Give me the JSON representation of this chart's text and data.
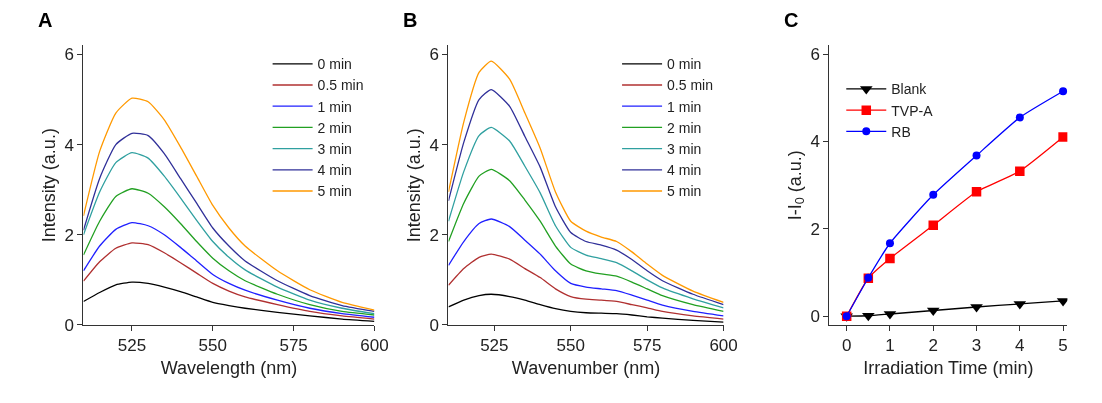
{
  "chart_data": [
    {
      "type": "line",
      "title": "A",
      "xlabel": "Wavelength (nm)",
      "ylabel": "Intensity (a.u.)",
      "xlim": [
        510,
        600
      ],
      "xticks": [
        525,
        550,
        575,
        600
      ],
      "ylim": [
        0,
        6.2
      ],
      "yticks": [
        0,
        2,
        4,
        6
      ],
      "legend": "top right",
      "x": [
        510,
        515,
        520,
        525,
        530,
        535,
        540,
        545,
        550,
        555,
        560,
        570,
        580,
        590,
        600
      ],
      "series": [
        {
          "name": "0 min",
          "color": "#000000",
          "values": [
            0.52,
            0.72,
            0.89,
            0.95,
            0.92,
            0.84,
            0.74,
            0.62,
            0.5,
            0.43,
            0.37,
            0.28,
            0.2,
            0.13,
            0.08
          ]
        },
        {
          "name": "0.5 min",
          "color": "#b03030",
          "values": [
            0.97,
            1.4,
            1.7,
            1.82,
            1.78,
            1.6,
            1.38,
            1.15,
            0.92,
            0.75,
            0.62,
            0.45,
            0.3,
            0.2,
            0.13
          ]
        },
        {
          "name": "1 min",
          "color": "#2020ff",
          "values": [
            1.2,
            1.75,
            2.12,
            2.27,
            2.2,
            2.0,
            1.72,
            1.42,
            1.12,
            0.92,
            0.77,
            0.55,
            0.37,
            0.25,
            0.17
          ]
        },
        {
          "name": "2 min",
          "color": "#22a022",
          "values": [
            1.55,
            2.3,
            2.85,
            3.02,
            2.92,
            2.62,
            2.25,
            1.85,
            1.48,
            1.2,
            0.98,
            0.68,
            0.45,
            0.3,
            0.22
          ]
        },
        {
          "name": "3 min",
          "color": "#30a0a0",
          "values": [
            2.0,
            2.95,
            3.6,
            3.82,
            3.7,
            3.3,
            2.82,
            2.32,
            1.85,
            1.5,
            1.22,
            0.84,
            0.55,
            0.37,
            0.25
          ]
        },
        {
          "name": "4 min",
          "color": "#303099",
          "values": [
            2.1,
            3.25,
            4.0,
            4.25,
            4.2,
            3.8,
            3.25,
            2.7,
            2.15,
            1.75,
            1.42,
            0.98,
            0.65,
            0.43,
            0.3
          ]
        },
        {
          "name": "5 min",
          "color": "#ff9900",
          "values": [
            2.42,
            3.85,
            4.7,
            5.03,
            4.95,
            4.55,
            3.95,
            3.3,
            2.65,
            2.15,
            1.75,
            1.2,
            0.78,
            0.5,
            0.33
          ]
        }
      ]
    },
    {
      "type": "line",
      "title": "B",
      "xlabel": "Wavenumber (nm)",
      "ylabel": "Intensity (a.u.)",
      "xlim": [
        510,
        600
      ],
      "xticks": [
        525,
        550,
        575,
        600
      ],
      "ylim": [
        0,
        6.2
      ],
      "yticks": [
        0,
        2,
        4,
        6
      ],
      "legend": "top right",
      "x": [
        510,
        515,
        520,
        524,
        530,
        535,
        540,
        545,
        550,
        555,
        560,
        565,
        570,
        575,
        580,
        590,
        600
      ],
      "series": [
        {
          "name": "0 min",
          "color": "#000000",
          "values": [
            0.4,
            0.55,
            0.65,
            0.68,
            0.63,
            0.55,
            0.45,
            0.36,
            0.3,
            0.27,
            0.26,
            0.25,
            0.22,
            0.18,
            0.15,
            0.1,
            0.06
          ]
        },
        {
          "name": "0.5 min",
          "color": "#b03030",
          "values": [
            0.88,
            1.25,
            1.5,
            1.57,
            1.46,
            1.25,
            1.05,
            0.8,
            0.63,
            0.57,
            0.55,
            0.52,
            0.45,
            0.38,
            0.3,
            0.2,
            0.13
          ]
        },
        {
          "name": "1 min",
          "color": "#2020ff",
          "values": [
            1.32,
            1.85,
            2.25,
            2.35,
            2.18,
            1.88,
            1.57,
            1.2,
            0.92,
            0.84,
            0.8,
            0.76,
            0.66,
            0.55,
            0.44,
            0.3,
            0.2
          ]
        },
        {
          "name": "2 min",
          "color": "#22a022",
          "values": [
            1.85,
            2.7,
            3.3,
            3.45,
            3.2,
            2.77,
            2.3,
            1.75,
            1.35,
            1.2,
            1.13,
            1.08,
            0.95,
            0.8,
            0.65,
            0.45,
            0.3
          ]
        },
        {
          "name": "3 min",
          "color": "#30a0a0",
          "values": [
            2.3,
            3.4,
            4.2,
            4.38,
            4.08,
            3.52,
            2.93,
            2.2,
            1.72,
            1.55,
            1.47,
            1.38,
            1.2,
            1.0,
            0.82,
            0.58,
            0.38
          ]
        },
        {
          "name": "4 min",
          "color": "#303099",
          "values": [
            2.75,
            4.05,
            5.0,
            5.22,
            4.85,
            4.18,
            3.5,
            2.62,
            2.05,
            1.85,
            1.77,
            1.66,
            1.45,
            1.2,
            0.98,
            0.68,
            0.45
          ]
        },
        {
          "name": "5 min",
          "color": "#ff9900",
          "values": [
            2.95,
            4.5,
            5.6,
            5.85,
            5.45,
            4.7,
            3.92,
            2.95,
            2.3,
            2.08,
            1.95,
            1.85,
            1.62,
            1.35,
            1.1,
            0.75,
            0.5
          ]
        }
      ]
    },
    {
      "type": "line",
      "title": "C",
      "xlabel": "Irradiation Time (min)",
      "ylabel": "I-I$_{0}$ (a.u.)",
      "xlim": [
        -0.4,
        5.1
      ],
      "xticks": [
        0,
        1,
        2,
        3,
        4,
        5
      ],
      "ylim": [
        -0.2,
        6.2
      ],
      "yticks": [
        0,
        2,
        4,
        6
      ],
      "legend": "top left",
      "x": [
        0,
        0.5,
        1,
        2,
        3,
        4,
        5
      ],
      "series": [
        {
          "name": "Blank",
          "color": "#000000",
          "marker": "triangle-down",
          "values": [
            0,
            0.01,
            0.05,
            0.13,
            0.21,
            0.28,
            0.35
          ]
        },
        {
          "name": "TVP-A",
          "color": "#ff0000",
          "marker": "square",
          "values": [
            0,
            0.87,
            1.32,
            2.08,
            2.85,
            3.32,
            4.1
          ]
        },
        {
          "name": "RB",
          "color": "#0000ff",
          "marker": "circle",
          "values": [
            0,
            0.88,
            1.67,
            2.78,
            3.68,
            4.55,
            5.15
          ]
        }
      ]
    }
  ]
}
